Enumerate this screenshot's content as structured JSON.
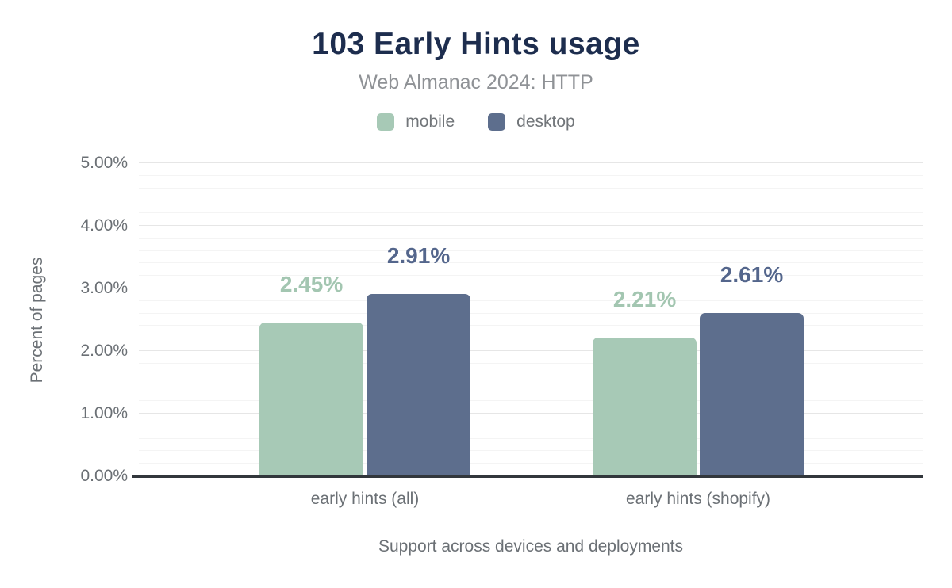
{
  "header": {
    "title": "103 Early Hints usage",
    "subtitle": "Web Almanac 2024: HTTP"
  },
  "chart_data": {
    "type": "bar",
    "title": "103 Early Hints usage",
    "subtitle": "Web Almanac 2024: HTTP",
    "categories": [
      "early hints (all)",
      "early hints (shopify)"
    ],
    "series": [
      {
        "name": "mobile",
        "color": "#a7c9b6",
        "label_color": "#a3c6b1",
        "values": [
          2.45,
          2.21
        ],
        "labels": [
          "2.45%",
          "2.21%"
        ]
      },
      {
        "name": "desktop",
        "color": "#5d6e8d",
        "label_color": "#54668c",
        "values": [
          2.91,
          2.61
        ],
        "labels": [
          "2.91%",
          "2.61%"
        ]
      }
    ],
    "xlabel": "Support across devices and deployments",
    "ylabel": "Percent of pages",
    "ylim": [
      0,
      5
    ],
    "yticks": [
      "0.00%",
      "1.00%",
      "2.00%",
      "3.00%",
      "4.00%",
      "5.00%"
    ],
    "grid": {
      "major_step": 1.0,
      "minor_step": 0.2,
      "grid_on": true
    },
    "legend_position": "top"
  },
  "colors": {
    "title": "#1d2d4e",
    "subtitle": "#8f9296",
    "legend_text": "#717579",
    "axis_text": "#6b7075",
    "axis_line": "#32373c",
    "grid_major": "#e6e6e6",
    "grid_minor": "#f4f4f4",
    "background": "#ffffff"
  }
}
